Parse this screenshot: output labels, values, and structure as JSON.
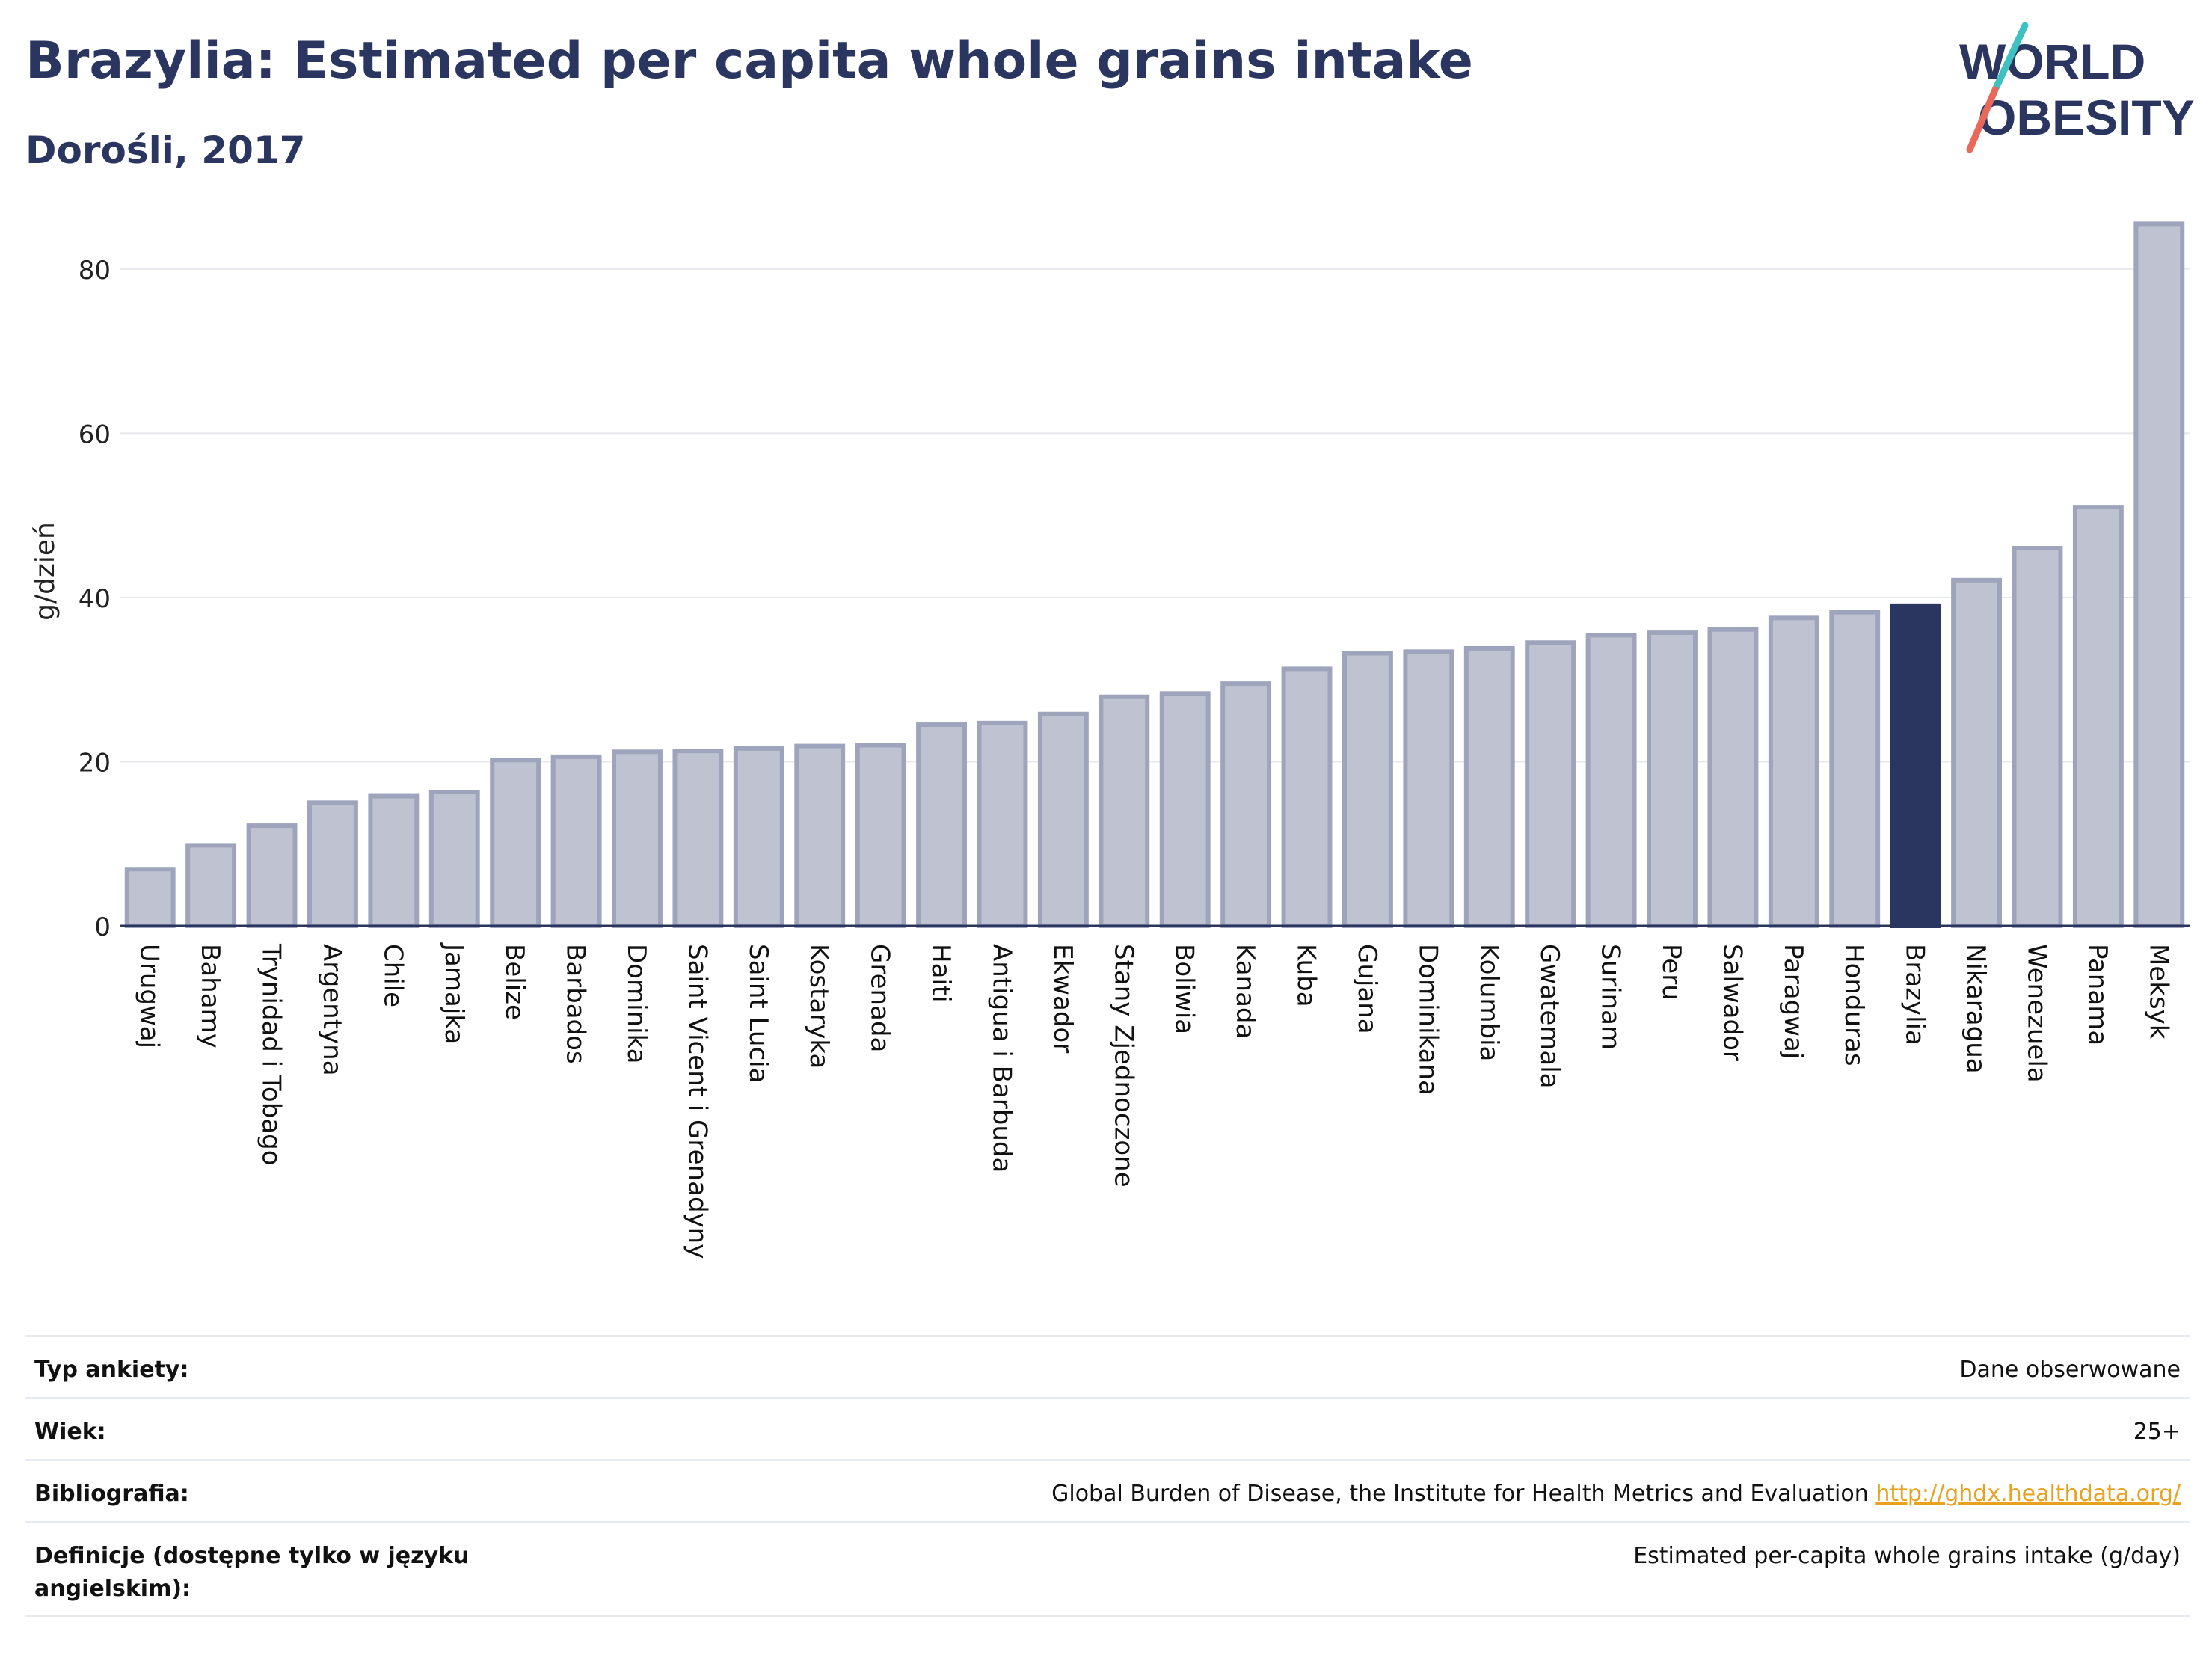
{
  "header": {
    "title": "Brazylia: Estimated per capita whole grains intake",
    "subtitle": "Dorośli, 2017"
  },
  "logo": {
    "line1": "WORLD",
    "line2": "OBESITY",
    "accent_colors": [
      "#3ec1c0",
      "#e8685a"
    ],
    "text_color": "#2a3560"
  },
  "colors": {
    "bar": "#bfc3d1",
    "bar_border": "#9ea4bb",
    "highlight": "#2a3560",
    "grid": "#e6e8ee",
    "axis": "#2a3560"
  },
  "chart_data": {
    "type": "bar",
    "ylabel": "g/dzień",
    "ylim": [
      0,
      90
    ],
    "yticks": [
      0,
      20,
      40,
      60,
      80
    ],
    "grid": true,
    "highlight": "Brazylia",
    "categories": [
      "Urugwaj",
      "Bahamy",
      "Trynidad i Tobago",
      "Argentyna",
      "Chile",
      "Jamajka",
      "Belize",
      "Barbados",
      "Dominika",
      "Saint Vicent i Grenadyny",
      "Saint Lucia",
      "Kostaryka",
      "Grenada",
      "Haiti",
      "Antigua i Barbuda",
      "Ekwador",
      "Stany Zjednoczone",
      "Boliwia",
      "Kanada",
      "Kuba",
      "Gujana",
      "Dominikana",
      "Kolumbia",
      "Gwatemala",
      "Surinam",
      "Peru",
      "Salwador",
      "Paragwaj",
      "Honduras",
      "Brazylia",
      "Nikaragua",
      "Wenezuela",
      "Panama",
      "Meksyk"
    ],
    "values": [
      6.9,
      9.8,
      12.2,
      15.0,
      15.8,
      16.3,
      20.2,
      20.6,
      21.2,
      21.3,
      21.6,
      21.9,
      22.0,
      24.5,
      24.7,
      25.8,
      27.9,
      28.3,
      29.5,
      31.3,
      33.2,
      33.4,
      33.8,
      34.5,
      35.4,
      35.7,
      36.1,
      37.5,
      38.2,
      39.0,
      42.1,
      46.0,
      51.0,
      85.5
    ]
  },
  "meta": {
    "rows": [
      {
        "key": "Typ ankiety:",
        "value": "Dane obserwowane"
      },
      {
        "key": "Wiek:",
        "value": "25+"
      },
      {
        "key": "Bibliografia:",
        "value": "Global Burden of Disease, the Institute for Health Metrics and Evaluation",
        "link": "http://ghdx.healthdata.org/"
      },
      {
        "key": "Definicje (dostępne tylko w języku angielskim):",
        "value": "Estimated per-capita whole grains intake (g/day)"
      }
    ]
  }
}
